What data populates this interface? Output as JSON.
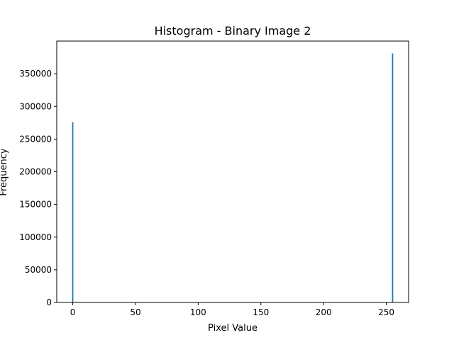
{
  "chart_data": {
    "type": "bar",
    "title": "Histogram - Binary Image 2",
    "xlabel": "Pixel Value",
    "ylabel": "Frequency",
    "xlim": [
      -12.75,
      267.75
    ],
    "ylim": [
      0,
      400000
    ],
    "xticks": [
      0,
      50,
      100,
      150,
      200,
      250
    ],
    "yticks": [
      0,
      50000,
      100000,
      150000,
      200000,
      250000,
      300000,
      350000
    ],
    "x": [
      0,
      255
    ],
    "values": [
      276000,
      381000
    ],
    "bar_width": 1,
    "color": "#1f77b4",
    "grid": false
  }
}
